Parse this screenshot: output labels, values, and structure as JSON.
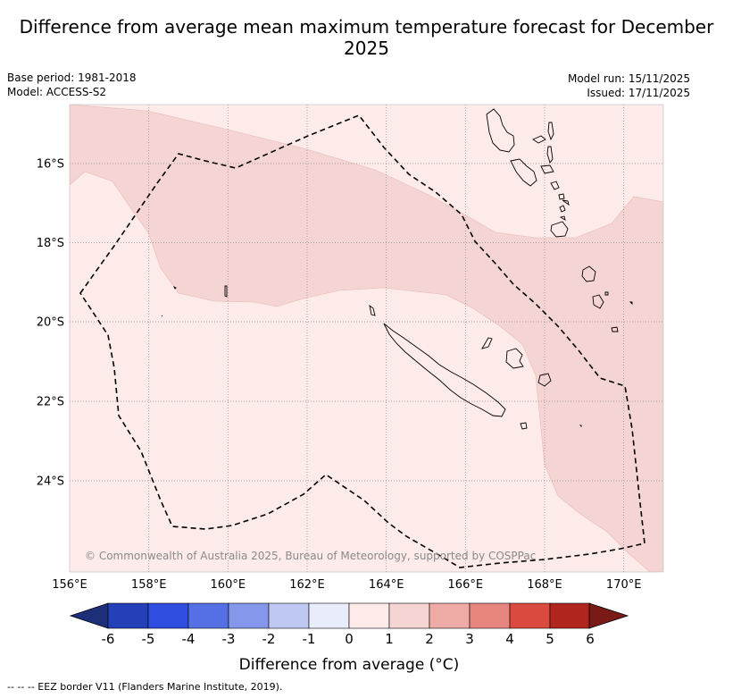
{
  "title": "Difference from average mean maximum temperature forecast for December 2025",
  "meta": {
    "base_period": "Base period: 1981-2018",
    "model": "Model: ACCESS-S2",
    "model_run": "Model run: 15/11/2025",
    "issued": "Issued: 17/11/2025"
  },
  "map": {
    "lon_range": [
      156,
      171
    ],
    "lat_range": [
      -26.3,
      -14.5
    ],
    "lon_ticks": [
      "156°E",
      "158°E",
      "160°E",
      "162°E",
      "164°E",
      "166°E",
      "168°E",
      "170°E"
    ],
    "lat_ticks": [
      "16°S",
      "18°S",
      "20°S",
      "22°S",
      "24°S"
    ],
    "copyright": "© Commonwealth of Australia 2025, Bureau of Meteorology, supported by COSPPac",
    "fill_colors": {
      "0_to_1": "#fcebe8",
      "1_to_2": "#f5d5d3"
    }
  },
  "colorbar": {
    "labels": [
      "-6",
      "-5",
      "-4",
      "-3",
      "-2",
      "-1",
      "0",
      "1",
      "2",
      "3",
      "4",
      "5",
      "6"
    ],
    "colors": [
      "#1e2f7a",
      "#2440b8",
      "#2f4ee0",
      "#5570e4",
      "#8497ea",
      "#bfc7f3",
      "#e9ecfb",
      "#fcebe8",
      "#f5d5d3",
      "#eeaba6",
      "#e6867e",
      "#db4a3e",
      "#b0261f",
      "#7a1a16"
    ],
    "label": "Difference from average (°C)"
  },
  "footer": "-- -- -- EEZ border V11 (Flanders Marine Institute, 2019)."
}
